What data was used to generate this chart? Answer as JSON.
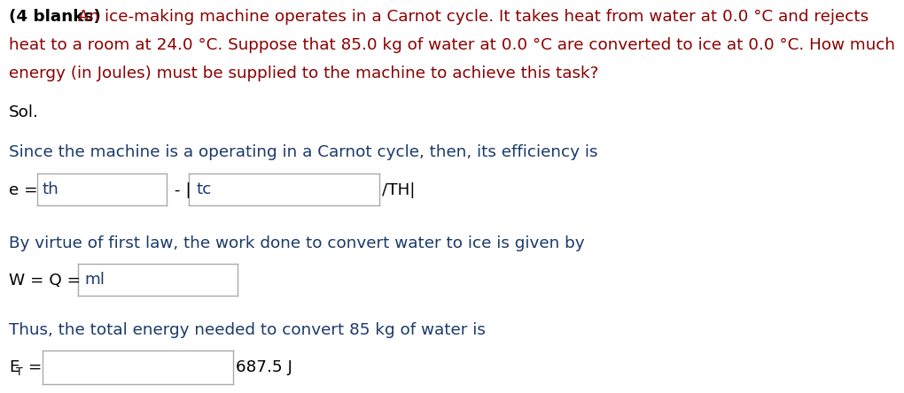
{
  "background_color": "#ffffff",
  "bold_prefix": "(4 blanks)",
  "intro_text_line1": " An ice-making machine operates in a Carnot cycle. It takes heat from water at 0.0 °C and rejects",
  "intro_text_line2": "heat to a room at 24.0 °C. Suppose that 85.0 kg of water at 0.0 °C are converted to ice at 0.0 °C. How much",
  "intro_text_line3": "energy (in Joules) must be supplied to the machine to achieve this task?",
  "sol_text": "Sol.",
  "since_text": "Since the machine is a operating in a Carnot cycle, then, its efficiency is",
  "eq1_prefix": "e = ",
  "eq1_box1_text": "th",
  "eq1_middle": " - |",
  "eq1_box2_text": "tc",
  "eq1_suffix": "/TH|",
  "by_virtue_text": "By virtue of first law, the work done to convert water to ice is given by",
  "eq2_prefix": "W = Q = ",
  "eq2_box1_text": "ml",
  "thus_text": "Thus, the total energy needed to convert 85 kg of water is",
  "eq3_prefix_main": "E",
  "eq3_prefix_sub": "T",
  "eq3_eq": " =",
  "eq3_suffix": "687.5 J",
  "intro_color": "#8B0000",
  "body_color": "#1a3a6b",
  "bold_color": "#000000",
  "text_color": "#000000",
  "font_size": 13.2
}
